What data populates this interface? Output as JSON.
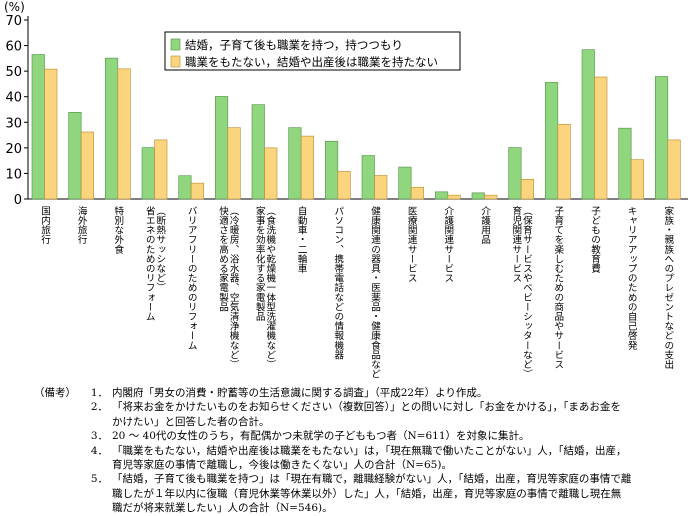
{
  "chart_data": {
    "type": "bar",
    "ylabel": "(%)",
    "ylim": [
      0,
      70
    ],
    "yticks": [
      0,
      10,
      20,
      30,
      40,
      50,
      60,
      70
    ],
    "grid": false,
    "legend_position": "top-center",
    "categories": [
      "国内旅行",
      "海外旅行",
      "特別な外食",
      "省エネのためのリフォーム\n（断熱サッシなど）",
      "バリアフリーのためのリフォーム",
      "快適さを高める家電製品\n（冷暖房、浴水器、空気清浄機など）",
      "家事を効率化する家電製品\n（食洗機や乾燥機一体型洗濯機など）",
      "自動車・二輪車",
      "パソコン、携帯電話などの情報機器",
      "健康関連の器具・医薬品・健康食品など",
      "医療関連サービス",
      "介護関連サービス",
      "介護用品",
      "育児関連サービス\n（保育サービスやベビーシッターなど）",
      "子育てを楽しむための商品やサービス",
      "子どもの教育費",
      "キャリアアップのための自己啓発",
      "家族・親族へのプレゼントなどの支出"
    ],
    "series": [
      {
        "name": "結婚，子育て後も職業を持つ，持つつもり",
        "color": "#8fd67f",
        "values": [
          56.5,
          33.9,
          55.1,
          20.1,
          9.1,
          40.1,
          36.9,
          27.9,
          22.6,
          17.0,
          12.5,
          2.8,
          2.4,
          20.1,
          45.6,
          58.4,
          27.7,
          47.9
        ]
      },
      {
        "name": "職業をもたない，結婚や出産後は職業を持たない",
        "color": "#fbd47e",
        "values": [
          50.8,
          26.2,
          50.9,
          23.1,
          6.2,
          27.9,
          20.0,
          24.6,
          10.8,
          9.2,
          4.6,
          1.5,
          1.5,
          7.7,
          29.2,
          47.7,
          15.4,
          23.1
        ]
      }
    ]
  },
  "notes": {
    "head": "（備考）",
    "items": [
      {
        "num": "1．",
        "text": "内閣府「男女の消費・貯蓄等の生活意識に関する調査」（平成22年）より作成。"
      },
      {
        "num": "2．",
        "text": "「将来お金をかけたいものをお知らせください（複数回答）」との問いに対し「お金をかける」，「まあお金を\nかけたい」と回答した者の合計。"
      },
      {
        "num": "3．",
        "text": "20 ～ 40代の女性のうち，有配偶かつ未就学の子どももつ者（N=611）を対象に集計。"
      },
      {
        "num": "4．",
        "text": "「職業をもたない，結婚や出産後は職業をもたない」は，「現在無職で働いたことがない」人，「結婚，出産，\n育児等家庭の事情で離職し，今後は働きたくない」人の合計（N=65)。"
      },
      {
        "num": "5．",
        "text": "「結婚，子育て後も職業を持つ」は「現在有職で，離職経験がない」人，「結婚，出産，育児等家庭の事情で離\n職したが１年以内に復職（育児休業等休業以外）した」人，「結婚，出産，育児等家庭の事情で離職し現在無\n職だが将来就業したい」人の合計（N=546)。"
      }
    ]
  }
}
